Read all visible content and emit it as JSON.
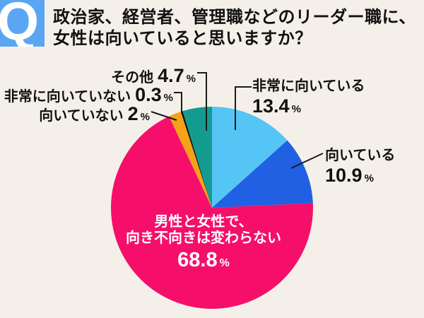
{
  "header": {
    "q_badge": "Q",
    "title_line1": "政治家、経営者、管理職などのリーダー職に、",
    "title_line2": "女性は向いていると思いますか？"
  },
  "chart_data": {
    "type": "pie",
    "title": "政治家、経営者、管理職などのリーダー職に、女性は向いていると思いますか？",
    "start_angle_deg": 0,
    "direction": "clockwise",
    "segments": [
      {
        "label": "非常に向いている",
        "value": 13.4,
        "unit": "%",
        "color": "#55C5F5"
      },
      {
        "label": "向いている",
        "value": 10.9,
        "unit": "%",
        "color": "#2160E2"
      },
      {
        "label": "男性と女性で、向き不向きは変わらない",
        "value": 68.8,
        "unit": "%",
        "color": "#F50F6B"
      },
      {
        "label": "向いていない",
        "value": 2,
        "unit": "%",
        "color": "#F4A316"
      },
      {
        "label": "非常に向いていない",
        "value": 0.3,
        "unit": "%",
        "color": "#111111"
      },
      {
        "label": "その他",
        "value": 4.7,
        "unit": "%",
        "color": "#139B90"
      }
    ],
    "center_label": {
      "line1": "男性と女性で、",
      "line2": "向き不向きは変わらない",
      "value": "68.8",
      "unit": "%"
    },
    "legend_position": "callout-labels",
    "grid": false
  },
  "colors": {
    "background": "#F4F0E9",
    "badge_blue": "#5BA6F2",
    "text": "#111111",
    "leader_line": "#1A1A1A",
    "center_text": "#FFFFFF"
  }
}
